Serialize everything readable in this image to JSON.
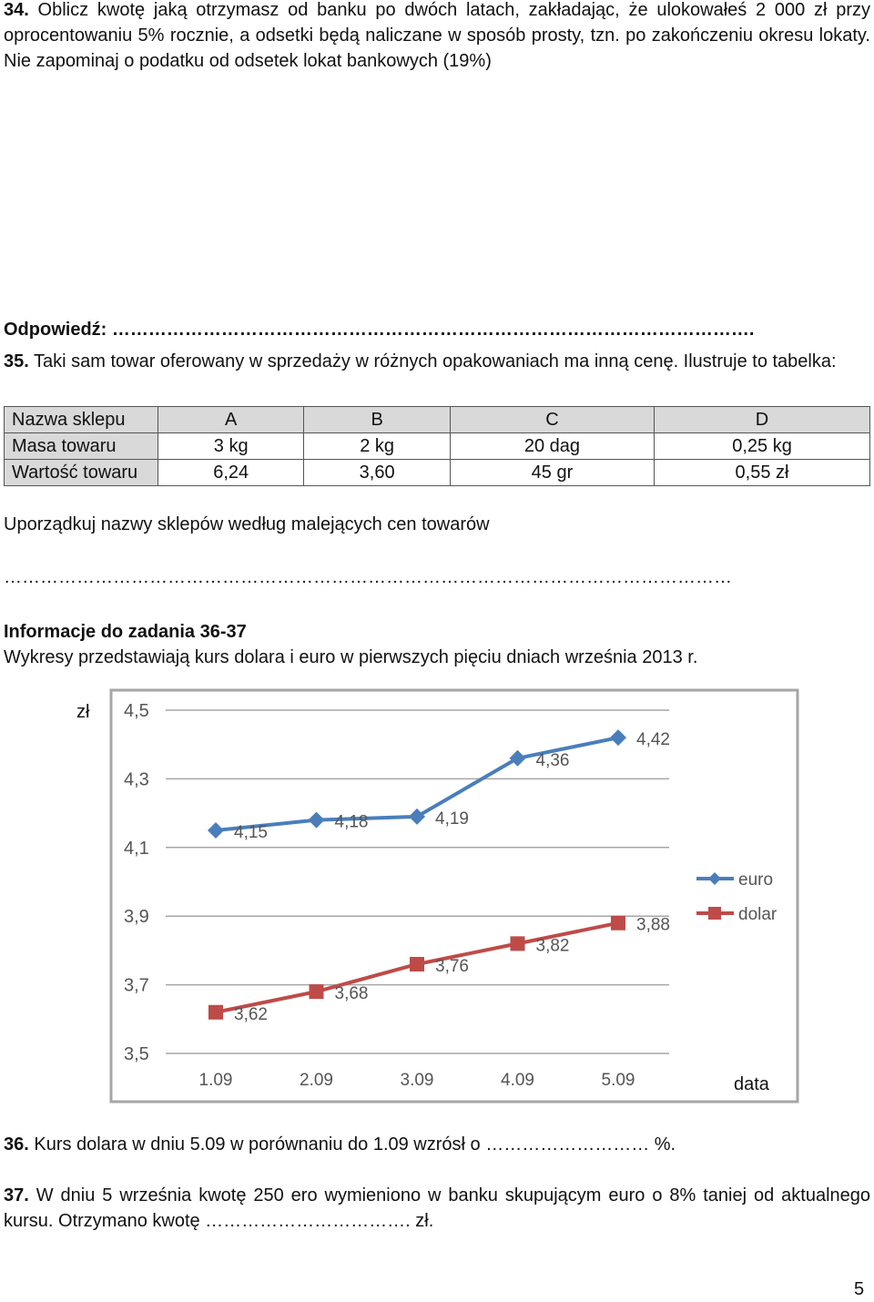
{
  "task34": {
    "number": "34.",
    "text": " Oblicz kwotę jaką otrzymasz od banku po dwóch latach, zakładając, że ulokowałeś 2 000 zł przy oprocentowaniu 5% rocznie, a odsetki będą naliczane w sposób prosty, tzn. po zakończeniu okresu lokaty. Nie zapominaj o podatku od odsetek lokat bankowych (19%)",
    "answer_label": "Odpowiedź: ……………………………………………………………………………………………."
  },
  "task35": {
    "number": "35.",
    "text": " Taki sam towar oferowany w sprzedaży w różnych opakowaniach ma inną cenę. Ilustruje to tabelka:",
    "table": {
      "header": [
        "Nazwa sklepu",
        "A",
        "B",
        "C",
        "D"
      ],
      "rows": [
        [
          "Masa towaru",
          "3 kg",
          "2 kg",
          "20 dag",
          "0,25 kg"
        ],
        [
          "Wartość towaru",
          "6,24",
          "3,60",
          "45 gr",
          "0,55 zł"
        ]
      ]
    },
    "instruction": "Uporządkuj nazwy sklepów według malejących cen towarów",
    "answer_line": "…………………………………………………………………………………………………………"
  },
  "info": {
    "title": "Informacje do zadania 36-37",
    "text": "Wykresy przedstawiają kurs dolara i euro w pierwszych pięciu dniach września 2013 r."
  },
  "chart_data": {
    "type": "line",
    "categories": [
      "1.09",
      "2.09",
      "3.09",
      "4.09",
      "5.09"
    ],
    "series": [
      {
        "name": "euro",
        "values": [
          4.15,
          4.18,
          4.19,
          4.36,
          4.42
        ],
        "labels": [
          "4,15",
          "4,18",
          "4,19",
          "4,36",
          "4,42"
        ],
        "color": "#4a7ebb",
        "marker": "diamond"
      },
      {
        "name": "dolar",
        "values": [
          3.62,
          3.68,
          3.76,
          3.82,
          3.88
        ],
        "labels": [
          "3,62",
          "3,68",
          "3,76",
          "3,82",
          "3,88"
        ],
        "color": "#be4b48",
        "marker": "square"
      }
    ],
    "ylabel": "zł",
    "xlabel": "data",
    "ylim": [
      3.5,
      4.5
    ],
    "yticks": [
      "4,5",
      "4,3",
      "4,1",
      "3,9",
      "3,7",
      "3,5"
    ],
    "ytick_values": [
      4.5,
      4.3,
      4.1,
      3.9,
      3.7,
      3.5
    ],
    "grid": true,
    "legend": "right"
  },
  "task36": {
    "number": "36.",
    "text": " Kurs dolara w dniu 5.09 w porównaniu do 1.09 wzrósł o ……………………… %."
  },
  "task37": {
    "number": "37.",
    "text": " W dniu 5 września kwotę 250 ero wymieniono w banku skupującym euro o 8% taniej od aktualnego kursu. Otrzymano kwotę ……………………………. zł."
  },
  "page_number": "5"
}
